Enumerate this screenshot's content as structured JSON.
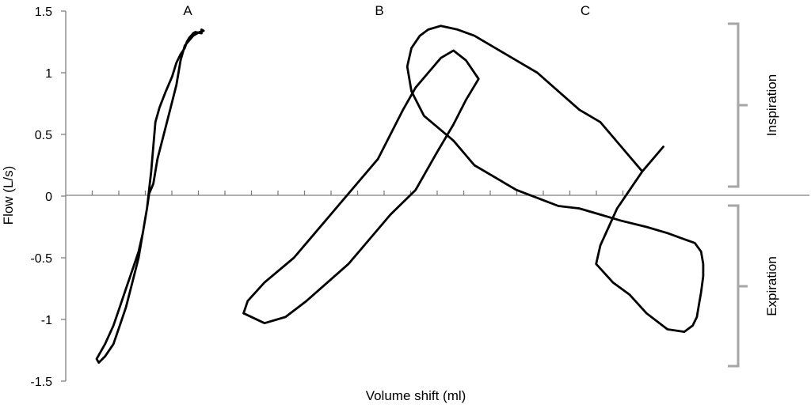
{
  "chart_data": {
    "type": "line",
    "title": "",
    "xlabel": "Volume shift (ml)",
    "ylabel": "Flow (L/s)",
    "ylim": [
      -1.5,
      1.5
    ],
    "yticks": [
      "1.5",
      "1",
      "0.5",
      "0",
      "-0.5",
      "-1",
      "-1.5"
    ],
    "grid": false,
    "loop_labels": [
      "A",
      "B",
      "C"
    ],
    "brackets": [
      "Inspiration",
      "Expiration"
    ],
    "series": [
      {
        "label": "A",
        "x": [
          28,
          30,
          33,
          36,
          38,
          40,
          42,
          43,
          44,
          46,
          47,
          50,
          50,
          51,
          49,
          46,
          42,
          40,
          38,
          35,
          32,
          29,
          27,
          25,
          24,
          23,
          22,
          20,
          17,
          14,
          11,
          8,
          4,
          0,
          1,
          4,
          8,
          11,
          14,
          17,
          20,
          22,
          24,
          26,
          28
        ],
        "y": [
          0.6,
          0.72,
          0.85,
          0.97,
          1.08,
          1.15,
          1.2,
          1.25,
          1.28,
          1.32,
          1.33,
          1.32,
          1.35,
          1.34,
          1.33,
          1.3,
          1.22,
          1.1,
          0.9,
          0.7,
          0.5,
          0.3,
          0.1,
          0.02,
          -0.1,
          -0.2,
          -0.3,
          -0.45,
          -0.6,
          -0.75,
          -0.9,
          -1.05,
          -1.2,
          -1.32,
          -1.35,
          -1.3,
          -1.2,
          -1.05,
          -0.9,
          -0.7,
          -0.5,
          -0.3,
          -0.1,
          0.2,
          0.6
        ]
      },
      {
        "label": "B",
        "x": [
          100,
          110,
          120,
          130,
          140,
          152,
          162,
          170,
          176,
          182,
          176,
          170,
          164,
          158,
          152,
          146,
          140,
          134,
          124,
          114,
          104,
          94,
          80,
          72,
          70,
          80,
          90,
          100
        ],
        "y": [
          -0.85,
          -0.7,
          -0.55,
          -0.35,
          -0.15,
          0.05,
          0.35,
          0.58,
          0.78,
          0.95,
          1.1,
          1.18,
          1.12,
          1.0,
          0.88,
          0.7,
          0.5,
          0.3,
          0.1,
          -0.1,
          -0.3,
          -0.5,
          -0.7,
          -0.85,
          -0.95,
          -1.03,
          -0.98,
          -0.85
        ]
      },
      {
        "label": "C",
        "x": [
          270,
          260,
          254,
          248,
          244,
          240,
          238,
          246,
          254,
          262,
          272,
          280,
          284,
          286,
          287,
          288,
          289,
          289,
          288,
          285,
          280,
          272,
          262,
          250,
          240,
          230,
          220,
          200,
          180,
          170,
          156,
          150,
          148,
          150,
          154,
          158,
          164,
          172,
          180,
          190,
          200,
          210,
          220,
          230,
          240,
          250,
          260,
          270
        ],
        "y": [
          0.4,
          0.2,
          0.05,
          -0.1,
          -0.25,
          -0.4,
          -0.55,
          -0.7,
          -0.8,
          -0.95,
          -1.08,
          -1.1,
          -1.05,
          -0.98,
          -0.88,
          -0.78,
          -0.65,
          -0.55,
          -0.45,
          -0.38,
          -0.35,
          -0.3,
          -0.25,
          -0.2,
          -0.15,
          -0.1,
          -0.08,
          0.05,
          0.25,
          0.45,
          0.65,
          0.85,
          1.05,
          1.2,
          1.3,
          1.35,
          1.38,
          1.35,
          1.3,
          1.2,
          1.1,
          1.0,
          0.85,
          0.7,
          0.6,
          0.4,
          0.2,
          0.4
        ]
      }
    ]
  }
}
